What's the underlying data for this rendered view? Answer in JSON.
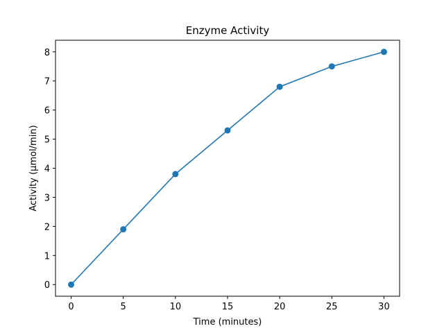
{
  "chart_data": {
    "type": "line",
    "title": "Enzyme Activity",
    "xlabel": "Time (minutes)",
    "ylabel": "Activity (µmol/min)",
    "x": [
      0,
      5,
      10,
      15,
      20,
      25,
      30
    ],
    "series": [
      {
        "values": [
          0,
          1.9,
          3.8,
          5.3,
          6.8,
          7.5,
          8.0
        ],
        "color": "#1f77b4",
        "marker": "circle"
      }
    ],
    "xlim": [
      -1.5,
      31.5
    ],
    "ylim": [
      -0.4,
      8.4
    ],
    "xticks": [
      0,
      5,
      10,
      15,
      20,
      25,
      30
    ],
    "yticks": [
      0,
      1,
      2,
      3,
      4,
      5,
      6,
      7,
      8
    ],
    "grid": false,
    "legend": "none"
  }
}
